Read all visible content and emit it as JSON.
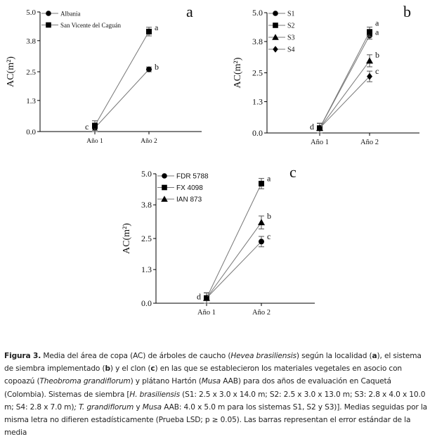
{
  "chart_data": [
    {
      "type": "line",
      "panel_label": "a",
      "ylabel": "AC(m²)",
      "categories": [
        "Año 1",
        "Año 2"
      ],
      "yticks": [
        "0.0",
        "1.3",
        "2.5",
        "3.8",
        "5.0"
      ],
      "ylim": [
        0,
        5
      ],
      "legend_placement": "top-left",
      "series": [
        {
          "name": "Albania",
          "marker": "circle",
          "values": [
            0.15,
            2.6
          ],
          "errors": [
            0.15,
            0.1
          ],
          "letters": [
            "c",
            "b"
          ]
        },
        {
          "name": "San Vicente del Caguán",
          "marker": "square",
          "values": [
            0.25,
            4.18
          ],
          "errors": [
            0.2,
            0.18
          ],
          "letters": [
            "",
            "a"
          ]
        }
      ]
    },
    {
      "type": "line",
      "panel_label": "b",
      "ylabel": "AC(m²)",
      "categories": [
        "Año 1",
        "Año 2"
      ],
      "yticks": [
        "0.0",
        "1.3",
        "2.5",
        "3.8",
        "5.0"
      ],
      "ylim": [
        0,
        5
      ],
      "legend_placement": "top-left",
      "series": [
        {
          "name": "S1",
          "marker": "circle",
          "values": [
            0.2,
            4.05
          ],
          "errors": [
            0.2,
            0.15
          ],
          "letters": [
            "d",
            "a"
          ]
        },
        {
          "name": "S2",
          "marker": "square",
          "values": [
            0.2,
            4.2
          ],
          "errors": [
            0.2,
            0.2
          ],
          "letters": [
            "",
            "a"
          ]
        },
        {
          "name": "S3",
          "marker": "triangle",
          "values": [
            0.2,
            3.0
          ],
          "errors": [
            0.2,
            0.25
          ],
          "letters": [
            "",
            "b"
          ]
        },
        {
          "name": "S4",
          "marker": "diamond",
          "values": [
            0.2,
            2.35
          ],
          "errors": [
            0.2,
            0.22
          ],
          "letters": [
            "",
            "c"
          ]
        }
      ]
    },
    {
      "type": "line",
      "panel_label": "c",
      "ylabel": "AC(m²)",
      "categories": [
        "Año 1",
        "Año 2"
      ],
      "yticks": [
        "0.0",
        "1.3",
        "2.5",
        "3.8",
        "5.0"
      ],
      "ylim": [
        0,
        5
      ],
      "legend_placement": "top-left",
      "series": [
        {
          "name": "FDR 5788",
          "marker": "circle",
          "values": [
            0.2,
            2.38
          ],
          "errors": [
            0.2,
            0.2
          ],
          "letters": [
            "d",
            "c"
          ]
        },
        {
          "name": "FX 4098",
          "marker": "square",
          "values": [
            0.2,
            4.62
          ],
          "errors": [
            0.2,
            0.2
          ],
          "letters": [
            "",
            "a"
          ]
        },
        {
          "name": "IAN 873",
          "marker": "triangle",
          "values": [
            0.2,
            3.12
          ],
          "errors": [
            0.2,
            0.25
          ],
          "letters": [
            "",
            "b"
          ]
        }
      ]
    }
  ],
  "caption": {
    "label": "Figura 3.",
    "parts": [
      " Media del área de copa (AC) de árboles de caucho (",
      "Hevea brasiliensis",
      ") según la localidad (",
      "a",
      "), el sistema de siembra implementado (",
      "b",
      ") y el clon (",
      "c",
      ") en las que se establecieron los materiales vegetales en asocio con copoazú (",
      "Theobroma grandiflorum",
      ") y plátano Hartón (",
      "Musa",
      " AAB) para dos años de evaluación en Caquetá (Colombia). Sistemas de siembra [",
      "H. brasiliensis",
      " (S1: 2.5 x 3.0 x 14.0 m; S2: 2.5 x 3.0 x 13.0 m; S3: 2.8 x 4.0 x 10.0 m; S4: 2.8 x 7.0 m)",
      ";",
      " T. grandiflorum",
      " y ",
      "Musa",
      " AAB: 4.0 x 5.0 m para los sistemas S1, S2 y S3)]. Medias seguidas por la misma letra no difieren estadísticamente (Prueba LSD; p ≥ 0.05). Las barras representan el error estándar de la media"
    ]
  }
}
